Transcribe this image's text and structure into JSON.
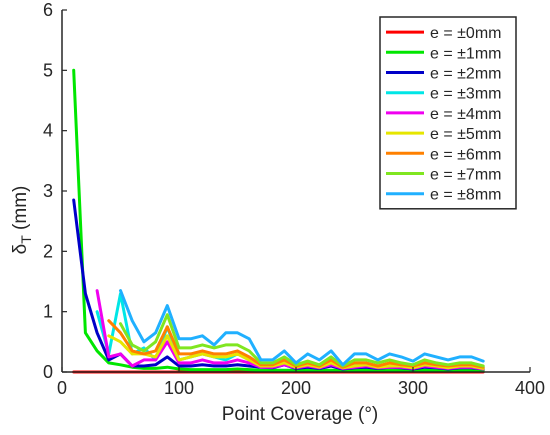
{
  "chart_data": {
    "type": "line",
    "title": "",
    "xlabel": "Point Coverage (°)",
    "ylabel_main": "δ",
    "ylabel_sub": "T",
    "ylabel_unit": " (mm)",
    "xlim": [
      0,
      400
    ],
    "ylim": [
      0,
      6
    ],
    "xticks": [
      0,
      100,
      200,
      300,
      400
    ],
    "yticks": [
      0,
      1,
      2,
      3,
      4,
      5,
      6
    ],
    "grid": false,
    "legend_position": "top-right",
    "series": [
      {
        "name": "e = ±0mm",
        "color": "#ff0000",
        "x": [
          10,
          100,
          200,
          300,
          360
        ],
        "y": [
          0,
          0,
          0,
          0,
          0
        ]
      },
      {
        "name": "e = ±1mm",
        "color": "#00e600",
        "x": [
          10,
          20,
          30,
          40,
          50,
          60,
          70,
          80,
          90,
          100,
          110,
          120,
          130,
          140,
          150,
          160,
          170,
          180,
          190,
          200,
          210,
          220,
          230,
          240,
          250,
          260,
          270,
          280,
          290,
          300,
          310,
          320,
          330,
          340,
          350,
          360
        ],
        "y": [
          5.0,
          0.65,
          0.35,
          0.15,
          0.12,
          0.08,
          0.06,
          0.06,
          0.08,
          0.05,
          0.04,
          0.04,
          0.04,
          0.04,
          0.05,
          0.04,
          0.03,
          0.03,
          0.03,
          0.03,
          0.03,
          0.03,
          0.03,
          0.03,
          0.03,
          0.03,
          0.03,
          0.03,
          0.03,
          0.03,
          0.03,
          0.03,
          0.03,
          0.03,
          0.03,
          0.03
        ]
      },
      {
        "name": "e = ±2mm",
        "color": "#0000c8",
        "x": [
          10,
          20,
          30,
          40,
          50,
          60,
          70,
          80,
          90,
          100,
          110,
          120,
          130,
          140,
          150,
          160,
          170,
          180,
          190,
          200,
          210,
          220,
          230,
          240,
          250,
          260,
          270,
          280,
          290,
          300,
          310,
          320,
          330,
          340,
          350,
          360
        ],
        "y": [
          2.85,
          1.3,
          0.65,
          0.2,
          0.3,
          0.1,
          0.1,
          0.12,
          0.25,
          0.1,
          0.1,
          0.12,
          0.1,
          0.1,
          0.12,
          0.1,
          0.08,
          0.07,
          0.12,
          0.06,
          0.08,
          0.06,
          0.1,
          0.05,
          0.07,
          0.08,
          0.06,
          0.08,
          0.07,
          0.05,
          0.08,
          0.07,
          0.05,
          0.07,
          0.07,
          0.05
        ]
      },
      {
        "name": "e = ±3mm",
        "color": "#00e6e6",
        "x": [
          30,
          40,
          50,
          60,
          70,
          80,
          90,
          100,
          110,
          120,
          130,
          140,
          150,
          160,
          170,
          180,
          190,
          200,
          210,
          220,
          230,
          240,
          250,
          260,
          270,
          280,
          290,
          300,
          310,
          320,
          330,
          340,
          350,
          360
        ],
        "y": [
          1.0,
          0.3,
          1.3,
          0.3,
          0.4,
          0.2,
          0.75,
          0.2,
          0.25,
          0.3,
          0.25,
          0.2,
          0.3,
          0.2,
          0.15,
          0.12,
          0.18,
          0.1,
          0.12,
          0.1,
          0.15,
          0.08,
          0.12,
          0.14,
          0.1,
          0.12,
          0.1,
          0.08,
          0.12,
          0.1,
          0.08,
          0.1,
          0.1,
          0.08
        ]
      },
      {
        "name": "e = ±4mm",
        "color": "#f000f0",
        "x": [
          30,
          40,
          50,
          60,
          70,
          80,
          90,
          100,
          110,
          120,
          130,
          140,
          150,
          160,
          170,
          180,
          190,
          200,
          210,
          220,
          230,
          240,
          250,
          260,
          270,
          280,
          290,
          300,
          310,
          320,
          330,
          340,
          350,
          360
        ],
        "y": [
          1.35,
          0.25,
          0.3,
          0.1,
          0.2,
          0.2,
          0.5,
          0.15,
          0.15,
          0.2,
          0.15,
          0.15,
          0.2,
          0.15,
          0.08,
          0.08,
          0.12,
          0.07,
          0.1,
          0.07,
          0.12,
          0.06,
          0.08,
          0.1,
          0.07,
          0.08,
          0.08,
          0.06,
          0.1,
          0.08,
          0.06,
          0.08,
          0.08,
          0.05
        ]
      },
      {
        "name": "e = ±5mm",
        "color": "#e6e600",
        "x": [
          40,
          50,
          60,
          70,
          80,
          90,
          100,
          110,
          120,
          130,
          140,
          150,
          160,
          170,
          180,
          190,
          200,
          210,
          220,
          230,
          240,
          250,
          260,
          270,
          280,
          290,
          300,
          310,
          320,
          330,
          340,
          350,
          360
        ],
        "y": [
          0.6,
          0.5,
          0.3,
          0.3,
          0.25,
          0.6,
          0.2,
          0.25,
          0.3,
          0.25,
          0.25,
          0.3,
          0.2,
          0.1,
          0.1,
          0.15,
          0.08,
          0.12,
          0.08,
          0.15,
          0.07,
          0.1,
          0.12,
          0.08,
          0.1,
          0.1,
          0.07,
          0.12,
          0.1,
          0.07,
          0.1,
          0.1,
          0.06
        ]
      },
      {
        "name": "e = ±6mm",
        "color": "#ff8000",
        "x": [
          40,
          50,
          60,
          70,
          80,
          90,
          100,
          110,
          120,
          130,
          140,
          150,
          160,
          170,
          180,
          190,
          200,
          210,
          220,
          230,
          240,
          250,
          260,
          270,
          280,
          290,
          300,
          310,
          320,
          330,
          340,
          350,
          360
        ],
        "y": [
          0.85,
          0.65,
          0.35,
          0.3,
          0.35,
          0.75,
          0.3,
          0.3,
          0.35,
          0.3,
          0.3,
          0.35,
          0.25,
          0.12,
          0.12,
          0.2,
          0.1,
          0.15,
          0.1,
          0.2,
          0.08,
          0.15,
          0.15,
          0.1,
          0.15,
          0.12,
          0.1,
          0.15,
          0.12,
          0.1,
          0.12,
          0.12,
          0.08
        ]
      },
      {
        "name": "e = ±7mm",
        "color": "#80e620",
        "x": [
          50,
          60,
          70,
          80,
          90,
          100,
          110,
          120,
          130,
          140,
          150,
          160,
          170,
          180,
          190,
          200,
          210,
          220,
          230,
          240,
          250,
          260,
          270,
          280,
          290,
          300,
          310,
          320,
          330,
          340,
          350,
          360
        ],
        "y": [
          0.8,
          0.45,
          0.35,
          0.5,
          0.95,
          0.4,
          0.4,
          0.45,
          0.4,
          0.45,
          0.45,
          0.35,
          0.15,
          0.15,
          0.25,
          0.12,
          0.18,
          0.12,
          0.25,
          0.1,
          0.2,
          0.2,
          0.15,
          0.2,
          0.15,
          0.12,
          0.2,
          0.15,
          0.12,
          0.15,
          0.15,
          0.1
        ]
      },
      {
        "name": "e = ±8mm",
        "color": "#20b0ff",
        "x": [
          50,
          60,
          70,
          80,
          90,
          100,
          110,
          120,
          130,
          140,
          150,
          160,
          170,
          180,
          190,
          200,
          210,
          220,
          230,
          240,
          250,
          260,
          270,
          280,
          290,
          300,
          310,
          320,
          330,
          340,
          350,
          360
        ],
        "y": [
          1.35,
          0.85,
          0.5,
          0.65,
          1.1,
          0.55,
          0.55,
          0.6,
          0.45,
          0.65,
          0.65,
          0.55,
          0.2,
          0.2,
          0.35,
          0.15,
          0.3,
          0.2,
          0.35,
          0.12,
          0.3,
          0.3,
          0.2,
          0.3,
          0.25,
          0.18,
          0.3,
          0.25,
          0.2,
          0.25,
          0.25,
          0.18
        ]
      }
    ]
  }
}
